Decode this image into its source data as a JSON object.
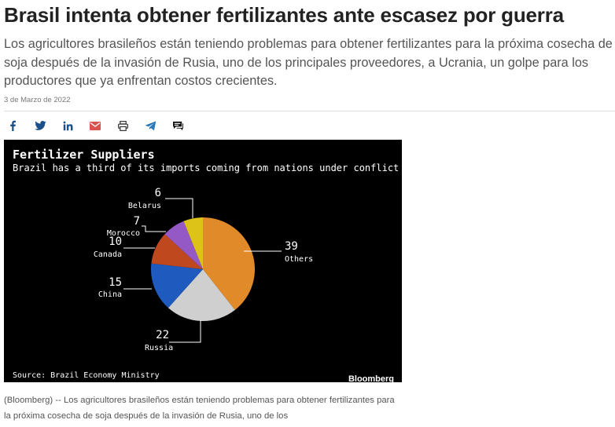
{
  "article": {
    "headline": "Brasil intenta obtener fertilizantes ante escasez por guerra",
    "lede": "Los agricultores brasileños están teniendo problemas para obtener fertilizantes para la próxima cosecha de soja después de  la invasión de Rusia, uno de los principales proveedores, a Ucrania, un golpe para los productores que ya enfrentan costos crecientes.",
    "date": "3 de Marzo de 2022",
    "caption": "(Bloomberg) -- Los agricultores brasileños están teniendo problemas para obtener fertilizantes para la próxima cosecha de soja después de  la invasión de Rusia, uno de los"
  },
  "share": [
    {
      "name": "facebook-icon",
      "icon": "facebook",
      "color": "#1a4f8a"
    },
    {
      "name": "twitter-icon",
      "icon": "twitter",
      "color": "#1a4f8a"
    },
    {
      "name": "linkedin-icon",
      "icon": "linkedin",
      "color": "#1a4f8a"
    },
    {
      "name": "email-icon",
      "icon": "email",
      "color": "#d9534f"
    },
    {
      "name": "print-icon",
      "icon": "print",
      "color": "#333333"
    },
    {
      "name": "telegram-icon",
      "icon": "telegram",
      "color": "#2a7ab8"
    },
    {
      "name": "comments-icon",
      "icon": "comments",
      "color": "#111111"
    }
  ],
  "chart_data": {
    "type": "pie",
    "title": "Fertilizer Suppliers",
    "subtitle": "Brazil has a third of its imports coming from nations under conflict",
    "source": "Source: Brazil Economy Ministry",
    "brand": "Bloomberg",
    "slices": [
      {
        "label": "Others",
        "value": 39,
        "color": "#e08a2a"
      },
      {
        "label": "Russia",
        "value": 22,
        "color": "#cfcfcf"
      },
      {
        "label": "China",
        "value": 15,
        "color": "#1f5bbf"
      },
      {
        "label": "Canada",
        "value": 10,
        "color": "#c0481f"
      },
      {
        "label": "Morocco",
        "value": 7,
        "color": "#9559c6"
      },
      {
        "label": "Belarus",
        "value": 6,
        "color": "#ddc218"
      }
    ]
  }
}
